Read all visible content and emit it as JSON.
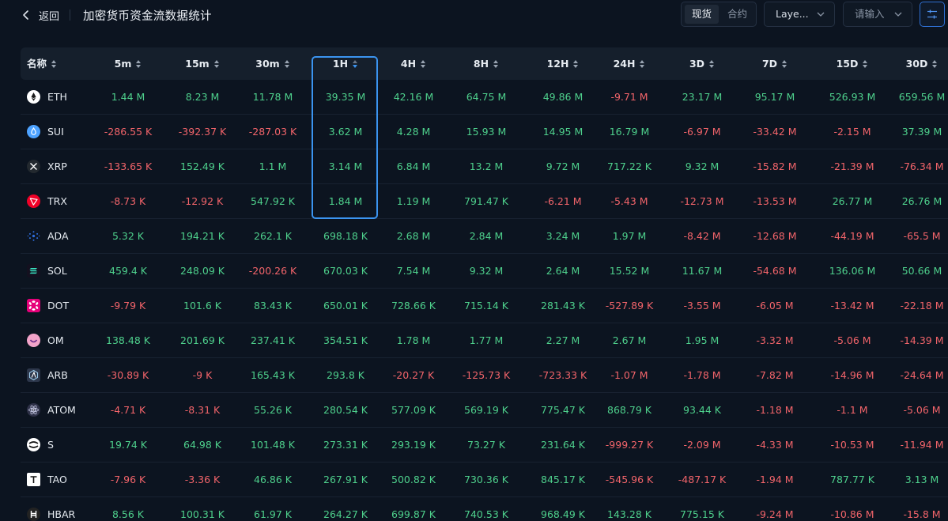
{
  "header": {
    "back_label": "返回",
    "title": "加密货币资金流数据统计",
    "market_tabs": [
      {
        "label": "现货",
        "active": true
      },
      {
        "label": "合约",
        "active": false
      }
    ],
    "layer_select": "Laye...",
    "search_placeholder": "请输入"
  },
  "table": {
    "columns": [
      "名称",
      "5m",
      "15m",
      "30m",
      "1H",
      "4H",
      "8H",
      "12H",
      "24H",
      "3D",
      "7D",
      "15D",
      "30D"
    ],
    "highlighted_column": "1H",
    "rows": [
      {
        "name": "ETH",
        "icon": "eth-icon",
        "color": "#ffffff",
        "values": [
          "1.44 M",
          "8.23 M",
          "11.78 M",
          "39.35 M",
          "42.16 M",
          "64.75 M",
          "49.86 M",
          "-9.71 M",
          "23.17 M",
          "95.17 M",
          "526.93 M",
          "659.56 M"
        ]
      },
      {
        "name": "SUI",
        "icon": "sui-icon",
        "color": "#4da2ff",
        "values": [
          "-286.55 K",
          "-392.37 K",
          "-287.03 K",
          "3.62 M",
          "4.28 M",
          "15.93 M",
          "14.95 M",
          "16.79 M",
          "-6.97 M",
          "-33.42 M",
          "-2.15 M",
          "37.39 M"
        ]
      },
      {
        "name": "XRP",
        "icon": "xrp-icon",
        "color": "#23292f",
        "values": [
          "-133.65 K",
          "152.49 K",
          "1.1 M",
          "3.14 M",
          "6.84 M",
          "13.2 M",
          "9.72 M",
          "717.22 K",
          "9.32 M",
          "-15.82 M",
          "-21.39 M",
          "-76.34 M"
        ]
      },
      {
        "name": "TRX",
        "icon": "trx-icon",
        "color": "#ef0027",
        "values": [
          "-8.73 K",
          "-12.92 K",
          "547.92 K",
          "1.84 M",
          "1.19 M",
          "791.47 K",
          "-6.21 M",
          "-5.43 M",
          "-12.73 M",
          "-13.53 M",
          "26.77 M",
          "26.76 M"
        ]
      },
      {
        "name": "ADA",
        "icon": "ada-icon",
        "color": "#0033ad",
        "values": [
          "5.32 K",
          "194.21 K",
          "262.1 K",
          "698.18 K",
          "2.68 M",
          "2.84 M",
          "3.24 M",
          "1.97 M",
          "-8.42 M",
          "-12.68 M",
          "-44.19 M",
          "-65.5 M"
        ]
      },
      {
        "name": "SOL",
        "icon": "sol-icon",
        "color": "#14101f",
        "values": [
          "459.4 K",
          "248.09 K",
          "-200.26 K",
          "670.03 K",
          "7.54 M",
          "9.32 M",
          "2.64 M",
          "15.52 M",
          "11.67 M",
          "-54.68 M",
          "136.06 M",
          "50.66 M"
        ]
      },
      {
        "name": "DOT",
        "icon": "dot-icon",
        "color": "#e6007a",
        "values": [
          "-9.79 K",
          "101.6 K",
          "83.43 K",
          "650.01 K",
          "728.66 K",
          "715.14 K",
          "281.43 K",
          "-527.89 K",
          "-3.55 M",
          "-6.05 M",
          "-13.42 M",
          "-22.18 M"
        ]
      },
      {
        "name": "OM",
        "icon": "om-icon",
        "color": "#f08fc0",
        "values": [
          "138.48 K",
          "201.69 K",
          "237.41 K",
          "354.51 K",
          "1.78 M",
          "1.77 M",
          "2.27 M",
          "2.67 M",
          "1.95 M",
          "-3.32 M",
          "-5.06 M",
          "-14.39 M"
        ]
      },
      {
        "name": "ARB",
        "icon": "arb-icon",
        "color": "#2d374b",
        "values": [
          "-30.89 K",
          "-9 K",
          "165.43 K",
          "293.8 K",
          "-20.27 K",
          "-125.73 K",
          "-723.33 K",
          "-1.07 M",
          "-1.78 M",
          "-7.82 M",
          "-14.96 M",
          "-24.64 M"
        ]
      },
      {
        "name": "ATOM",
        "icon": "atom-icon",
        "color": "#2e3148",
        "values": [
          "-4.71 K",
          "-8.31 K",
          "55.26 K",
          "280.54 K",
          "577.09 K",
          "569.19 K",
          "775.47 K",
          "868.79 K",
          "93.44 K",
          "-1.18 M",
          "-1.1 M",
          "-5.06 M"
        ]
      },
      {
        "name": "S",
        "icon": "s-icon",
        "color": "#ffffff",
        "values": [
          "19.74 K",
          "64.98 K",
          "101.48 K",
          "273.31 K",
          "293.19 K",
          "73.27 K",
          "231.64 K",
          "-999.27 K",
          "-2.09 M",
          "-4.33 M",
          "-10.53 M",
          "-11.94 M"
        ]
      },
      {
        "name": "TAO",
        "icon": "tao-icon",
        "color": "#ffffff",
        "values": [
          "-7.96 K",
          "-3.36 K",
          "46.86 K",
          "267.91 K",
          "500.82 K",
          "730.36 K",
          "845.17 K",
          "-545.96 K",
          "-487.17 K",
          "-1.94 M",
          "787.77 K",
          "3.13 M"
        ]
      },
      {
        "name": "HBAR",
        "icon": "hbar-icon",
        "color": "#222222",
        "values": [
          "8.56 K",
          "100.31 K",
          "61.97 K",
          "264.27 K",
          "699.87 K",
          "740.53 K",
          "968.49 K",
          "143.28 K",
          "775.15 K",
          "-9.24 M",
          "-10.86 M",
          "-15.8 M"
        ]
      }
    ]
  }
}
